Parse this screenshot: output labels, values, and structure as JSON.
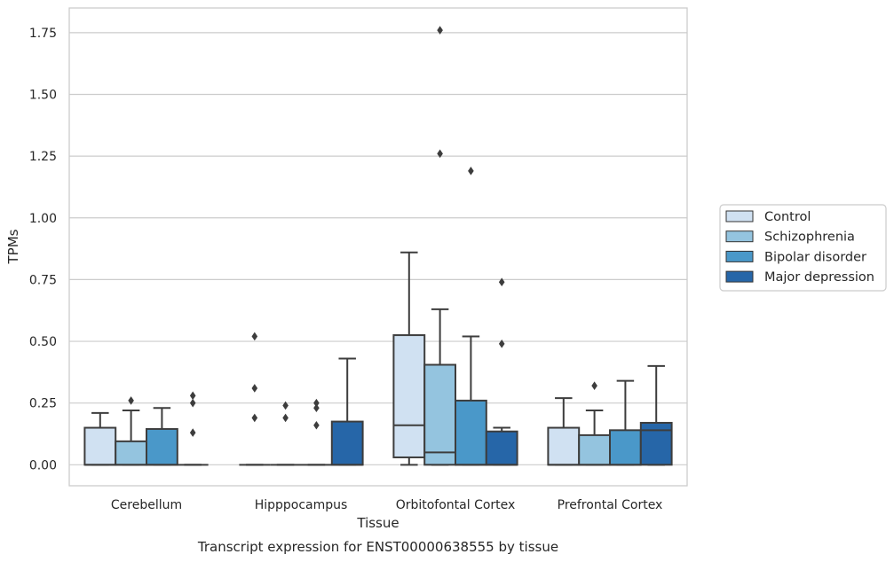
{
  "chart_data": {
    "type": "box",
    "title": "",
    "caption": "Transcript expression for ENST00000638555 by tissue",
    "xlabel": "Tissue",
    "ylabel": "TPMs",
    "ylim": [
      -0.085,
      1.85
    ],
    "yticks": [
      0.0,
      0.25,
      0.5,
      0.75,
      1.0,
      1.25,
      1.5,
      1.75
    ],
    "ytick_labels": [
      "0.00",
      "0.25",
      "0.50",
      "0.75",
      "1.00",
      "1.25",
      "1.50",
      "1.75"
    ],
    "grid": "horizontal",
    "legend_position": "right",
    "categories": [
      "Cerebellum",
      "Hipppocampus",
      "Orbitofontal Cortex",
      "Prefrontal Cortex"
    ],
    "series": [
      {
        "name": "Control",
        "color": "#d0e1f2",
        "boxes": [
          {
            "q1": 0.0,
            "median": 0.0,
            "q3": 0.15,
            "whisker_low": 0.0,
            "whisker_high": 0.21,
            "outliers": []
          },
          {
            "q1": 0.0,
            "median": 0.0,
            "q3": 0.0,
            "whisker_low": 0.0,
            "whisker_high": 0.0,
            "outliers": [
              0.19,
              0.31,
              0.52
            ]
          },
          {
            "q1": 0.03,
            "median": 0.16,
            "q3": 0.525,
            "whisker_low": 0.0,
            "whisker_high": 0.86,
            "outliers": []
          },
          {
            "q1": 0.0,
            "median": 0.0,
            "q3": 0.15,
            "whisker_low": 0.0,
            "whisker_high": 0.27,
            "outliers": []
          }
        ]
      },
      {
        "name": "Schizophrenia",
        "color": "#94c4df",
        "boxes": [
          {
            "q1": 0.0,
            "median": 0.0,
            "q3": 0.095,
            "whisker_low": 0.0,
            "whisker_high": 0.22,
            "outliers": [
              0.26
            ]
          },
          {
            "q1": 0.0,
            "median": 0.0,
            "q3": 0.0,
            "whisker_low": 0.0,
            "whisker_high": 0.0,
            "outliers": [
              0.19,
              0.24
            ]
          },
          {
            "q1": 0.0,
            "median": 0.05,
            "q3": 0.405,
            "whisker_low": 0.0,
            "whisker_high": 0.63,
            "outliers": [
              1.26,
              1.76
            ]
          },
          {
            "q1": 0.0,
            "median": 0.0,
            "q3": 0.12,
            "whisker_low": 0.0,
            "whisker_high": 0.22,
            "outliers": [
              0.32
            ]
          }
        ]
      },
      {
        "name": "Bipolar disorder",
        "color": "#4a98c9",
        "boxes": [
          {
            "q1": 0.0,
            "median": 0.0,
            "q3": 0.145,
            "whisker_low": 0.0,
            "whisker_high": 0.23,
            "outliers": []
          },
          {
            "q1": 0.0,
            "median": 0.0,
            "q3": 0.0,
            "whisker_low": 0.0,
            "whisker_high": 0.0,
            "outliers": [
              0.16,
              0.23,
              0.25
            ]
          },
          {
            "q1": 0.0,
            "median": 0.0,
            "q3": 0.26,
            "whisker_low": 0.0,
            "whisker_high": 0.52,
            "outliers": [
              1.19
            ]
          },
          {
            "q1": 0.0,
            "median": 0.0,
            "q3": 0.14,
            "whisker_low": 0.0,
            "whisker_high": 0.34,
            "outliers": []
          }
        ]
      },
      {
        "name": "Major depression",
        "color": "#2666a8",
        "boxes": [
          {
            "q1": 0.0,
            "median": 0.0,
            "q3": 0.0,
            "whisker_low": 0.0,
            "whisker_high": 0.0,
            "outliers": [
              0.13,
              0.25,
              0.28
            ]
          },
          {
            "q1": 0.0,
            "median": 0.0,
            "q3": 0.175,
            "whisker_low": 0.0,
            "whisker_high": 0.43,
            "outliers": []
          },
          {
            "q1": 0.0,
            "median": 0.0,
            "q3": 0.135,
            "whisker_low": 0.0,
            "whisker_high": 0.15,
            "outliers": [
              0.49,
              0.74
            ]
          },
          {
            "q1": 0.0,
            "median": 0.14,
            "q3": 0.17,
            "whisker_low": 0.0,
            "whisker_high": 0.4,
            "outliers": []
          }
        ]
      }
    ]
  }
}
